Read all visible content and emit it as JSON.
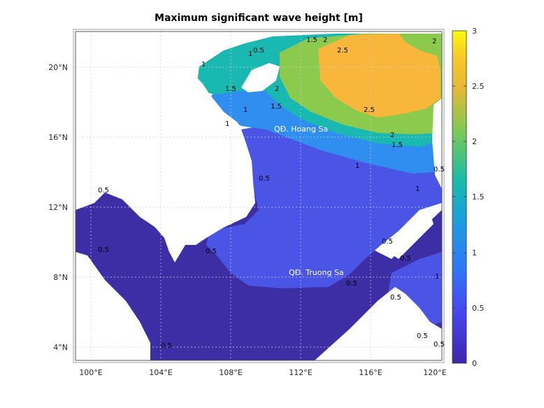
{
  "title": "Maximum significant wave height [m]",
  "colors": {
    "c0": "#3d2ea6",
    "c05": "#4a55e6",
    "c1": "#2f8ef0",
    "c15": "#19b8b0",
    "c2": "#8cca4e",
    "c25": "#f8b73a",
    "land": "#ffffff",
    "grid": "#cfcfcf"
  },
  "map": {
    "lon_range": [
      99.3,
      120.2
    ],
    "lat_range": [
      3.1,
      22.0
    ],
    "lon_ticks": [
      "100°E",
      "104°E",
      "108°E",
      "112°E",
      "116°E",
      "120°E"
    ],
    "lat_ticks": [
      "4°N",
      "8°N",
      "12°N",
      "16°N",
      "20°N"
    ],
    "regions": [
      "QĐ. Hoang Sa",
      "QĐ. Truong Sa"
    ],
    "contour_labels": [
      "0.5",
      "1",
      "1.5",
      "2",
      "2.5"
    ]
  },
  "colorbar": {
    "range": [
      0,
      3
    ],
    "tick_labels": [
      "0",
      "0.5",
      "1",
      "1.5",
      "2",
      "2.5",
      "3"
    ],
    "colormap": "parula"
  }
}
